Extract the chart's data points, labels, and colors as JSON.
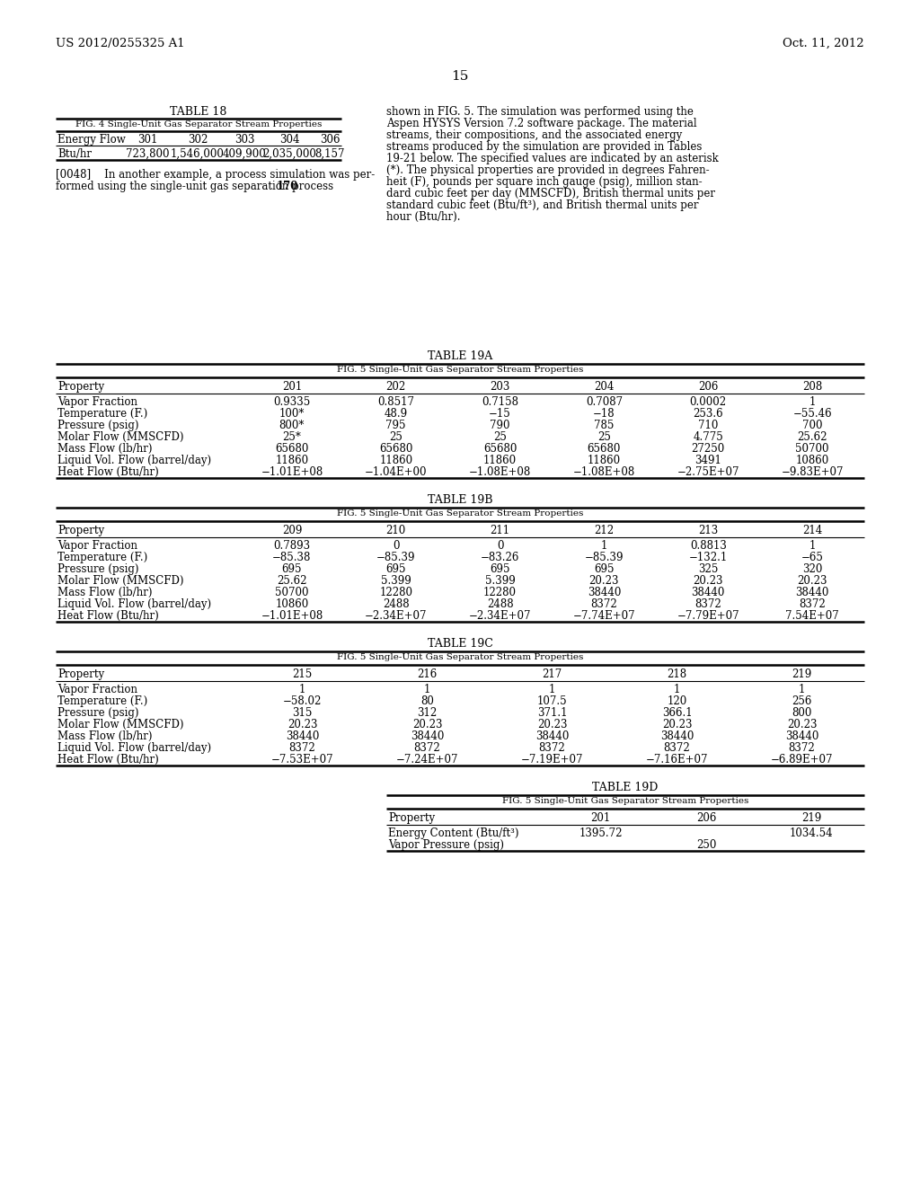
{
  "bg_color": "#ffffff",
  "header_left": "US 2012/0255325 A1",
  "header_right": "Oct. 11, 2012",
  "page_number": "15",
  "table18": {
    "title": "TABLE 18",
    "subtitle": "FIG. 4 Single-Unit Gas Separator Stream Properties",
    "col_header": [
      "Energy Flow",
      "301",
      "302",
      "303",
      "304",
      "306"
    ],
    "rows": [
      [
        "Btu/hr",
        "723,800",
        "1,546,000",
        "409,900",
        "2,035,000",
        "8,157"
      ]
    ]
  },
  "para0048_line1": "[0048]    In another example, a process simulation was per-",
  "para0048_line2": "formed using the single-unit gas separation process ",
  "para0048_bold": "170",
  "para_right_lines": [
    "shown in FIG. 5. The simulation was performed using the",
    "Aspen HYSYS Version 7.2 software package. The material",
    "streams, their compositions, and the associated energy",
    "streams produced by the simulation are provided in Tables",
    "19-21 below. The specified values are indicated by an asterisk",
    "(*). The physical properties are provided in degrees Fahren-",
    "heit (F), pounds per square inch gauge (psig), million stan-",
    "dard cubic feet per day (MMSCFD), British thermal units per",
    "standard cubic feet (Btu/ft³), and British thermal units per",
    "hour (Btu/hr)."
  ],
  "table19A": {
    "title": "TABLE 19A",
    "subtitle": "FIG. 5 Single-Unit Gas Separator Stream Properties",
    "col_header": [
      "Property",
      "201",
      "202",
      "203",
      "204",
      "206",
      "208"
    ],
    "rows": [
      [
        "Vapor Fraction",
        "0.9335",
        "0.8517",
        "0.7158",
        "0.7087",
        "0.0002",
        "1"
      ],
      [
        "Temperature (F.)",
        "100*",
        "48.9",
        "−15",
        "−18",
        "253.6",
        "−55.46"
      ],
      [
        "Pressure (psig)",
        "800*",
        "795",
        "790",
        "785",
        "710",
        "700"
      ],
      [
        "Molar Flow (MMSCFD)",
        "25*",
        "25",
        "25",
        "25",
        "4.775",
        "25.62"
      ],
      [
        "Mass Flow (lb/hr)",
        "65680",
        "65680",
        "65680",
        "65680",
        "27250",
        "50700"
      ],
      [
        "Liquid Vol. Flow (barrel/day)",
        "11860",
        "11860",
        "11860",
        "11860",
        "3491",
        "10860"
      ],
      [
        "Heat Flow (Btu/hr)",
        "−1.01E+08",
        "−1.04E+00",
        "−1.08E+08",
        "−1.08E+08",
        "−2.75E+07",
        "−9.83E+07"
      ]
    ]
  },
  "table19B": {
    "title": "TABLE 19B",
    "subtitle": "FIG. 5 Single-Unit Gas Separator Stream Properties",
    "col_header": [
      "Property",
      "209",
      "210",
      "211",
      "212",
      "213",
      "214"
    ],
    "rows": [
      [
        "Vapor Fraction",
        "0.7893",
        "0",
        "0",
        "1",
        "0.8813",
        "1"
      ],
      [
        "Temperature (F.)",
        "−85.38",
        "−85.39",
        "−83.26",
        "−85.39",
        "−132.1",
        "−65"
      ],
      [
        "Pressure (psig)",
        "695",
        "695",
        "695",
        "695",
        "325",
        "320"
      ],
      [
        "Molar Flow (MMSCFD)",
        "25.62",
        "5.399",
        "5.399",
        "20.23",
        "20.23",
        "20.23"
      ],
      [
        "Mass Flow (lb/hr)",
        "50700",
        "12280",
        "12280",
        "38440",
        "38440",
        "38440"
      ],
      [
        "Liquid Vol. Flow (barrel/day)",
        "10860",
        "2488",
        "2488",
        "8372",
        "8372",
        "8372"
      ],
      [
        "Heat Flow (Btu/hr)",
        "−1.01E+08",
        "−2.34E+07",
        "−2.34E+07",
        "−7.74E+07",
        "−7.79E+07",
        "7.54E+07"
      ]
    ]
  },
  "table19C": {
    "title": "TABLE 19C",
    "subtitle": "FIG. 5 Single-Unit Gas Separator Stream Properties",
    "col_header": [
      "Property",
      "215",
      "216",
      "217",
      "218",
      "219"
    ],
    "rows": [
      [
        "Vapor Fraction",
        "1",
        "1",
        "1",
        "1",
        "1"
      ],
      [
        "Temperature (F.)",
        "−58.02",
        "80",
        "107.5",
        "120",
        "256"
      ],
      [
        "Pressure (psig)",
        "315",
        "312",
        "371.1",
        "366.1",
        "800"
      ],
      [
        "Molar Flow (MMSCFD)",
        "20.23",
        "20.23",
        "20.23",
        "20.23",
        "20.23"
      ],
      [
        "Mass Flow (lb/hr)",
        "38440",
        "38440",
        "38440",
        "38440",
        "38440"
      ],
      [
        "Liquid Vol. Flow (barrel/day)",
        "8372",
        "8372",
        "8372",
        "8372",
        "8372"
      ],
      [
        "Heat Flow (Btu/hr)",
        "−7.53E+07",
        "−7.24E+07",
        "−7.19E+07",
        "−7.16E+07",
        "−6.89E+07"
      ]
    ]
  },
  "table19D": {
    "title": "TABLE 19D",
    "subtitle": "FIG. 5 Single-Unit Gas Separator Stream Properties",
    "col_header": [
      "Property",
      "201",
      "206",
      "219"
    ],
    "rows": [
      [
        "Energy Content (Btu/ft³)",
        "1395.72",
        "",
        "1034.54"
      ],
      [
        "Vapor Pressure (psig)",
        "",
        "250",
        ""
      ]
    ]
  }
}
